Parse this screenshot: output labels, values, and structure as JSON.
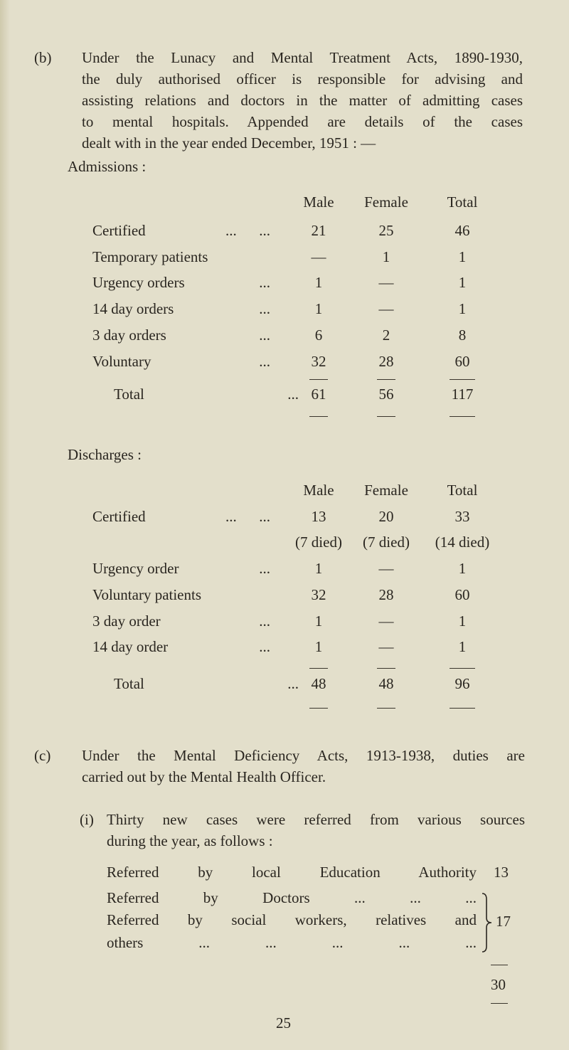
{
  "section_b": {
    "marker": "(b)",
    "lines": [
      "Under the Lunacy and Mental Treatment Acts, 1890-1930,",
      "the duly authorised officer is responsible for advising and",
      "assisting relations and doctors in the matter of admitting cases",
      "to mental hospitals. Appended are details of the cases",
      "dealt with in the year ended December, 1951 : —"
    ]
  },
  "admissions": {
    "heading": "Admissions :",
    "columns": [
      "Male",
      "Female",
      "Total"
    ],
    "rows": [
      {
        "label": "Certified",
        "dots": "...      ...",
        "male": "21",
        "female": "25",
        "total": "46"
      },
      {
        "label": "Temporary patients",
        "dots": "",
        "male": "—",
        "female": "1",
        "total": "1"
      },
      {
        "label": "Urgency orders",
        "dots": "...",
        "male": "1",
        "female": "—",
        "total": "1"
      },
      {
        "label": "14 day orders",
        "dots": "...",
        "male": "1",
        "female": "—",
        "total": "1"
      },
      {
        "label": "3 day orders",
        "dots": "...",
        "male": "6",
        "female": "2",
        "total": "8"
      },
      {
        "label": "Voluntary",
        "dots": "...",
        "male": "32",
        "female": "28",
        "total": "60"
      }
    ],
    "total": {
      "label": "Total",
      "dots": "...",
      "male": "61",
      "female": "56",
      "total": "117"
    }
  },
  "discharges": {
    "heading": "Discharges :",
    "columns": [
      "Male",
      "Female",
      "Total"
    ],
    "rows": [
      {
        "label": "Certified",
        "dots": "...      ...",
        "male": "13",
        "female": "20",
        "total": "33"
      },
      {
        "label": "",
        "dots": "",
        "male": "(7 died)",
        "female": "(7 died)",
        "total": "(14 died)"
      },
      {
        "label": "Urgency order",
        "dots": "...",
        "male": "1",
        "female": "—",
        "total": "1"
      },
      {
        "label": "Voluntary patients",
        "dots": "",
        "male": "32",
        "female": "28",
        "total": "60"
      },
      {
        "label": "3 day order",
        "dots": "...",
        "male": "1",
        "female": "—",
        "total": "1"
      },
      {
        "label": "14 day order",
        "dots": "...",
        "male": "1",
        "female": "—",
        "total": "1"
      }
    ],
    "total": {
      "label": "Total",
      "dots": "...",
      "male": "48",
      "female": "48",
      "total": "96"
    }
  },
  "section_c": {
    "marker": "(c)",
    "lines": [
      "Under the Mental Deficiency Acts, 1913-1938, duties are",
      "carried out by the Mental Health Officer."
    ]
  },
  "section_i": {
    "marker": "(i)",
    "lines": [
      "Thirty new cases were referred from various sources",
      "during the year, as follows :"
    ],
    "referrals": [
      {
        "text": "Referred by local Education Authority",
        "value": "13"
      },
      {
        "text": "Referred by Doctors      ...      ...      ...",
        "value": ""
      },
      {
        "text": "Referred by social workers, relatives and",
        "value": "17"
      },
      {
        "text": "others ...      ...      ...      ...      ...",
        "value": ""
      }
    ],
    "total": "30"
  },
  "page_number": "25"
}
